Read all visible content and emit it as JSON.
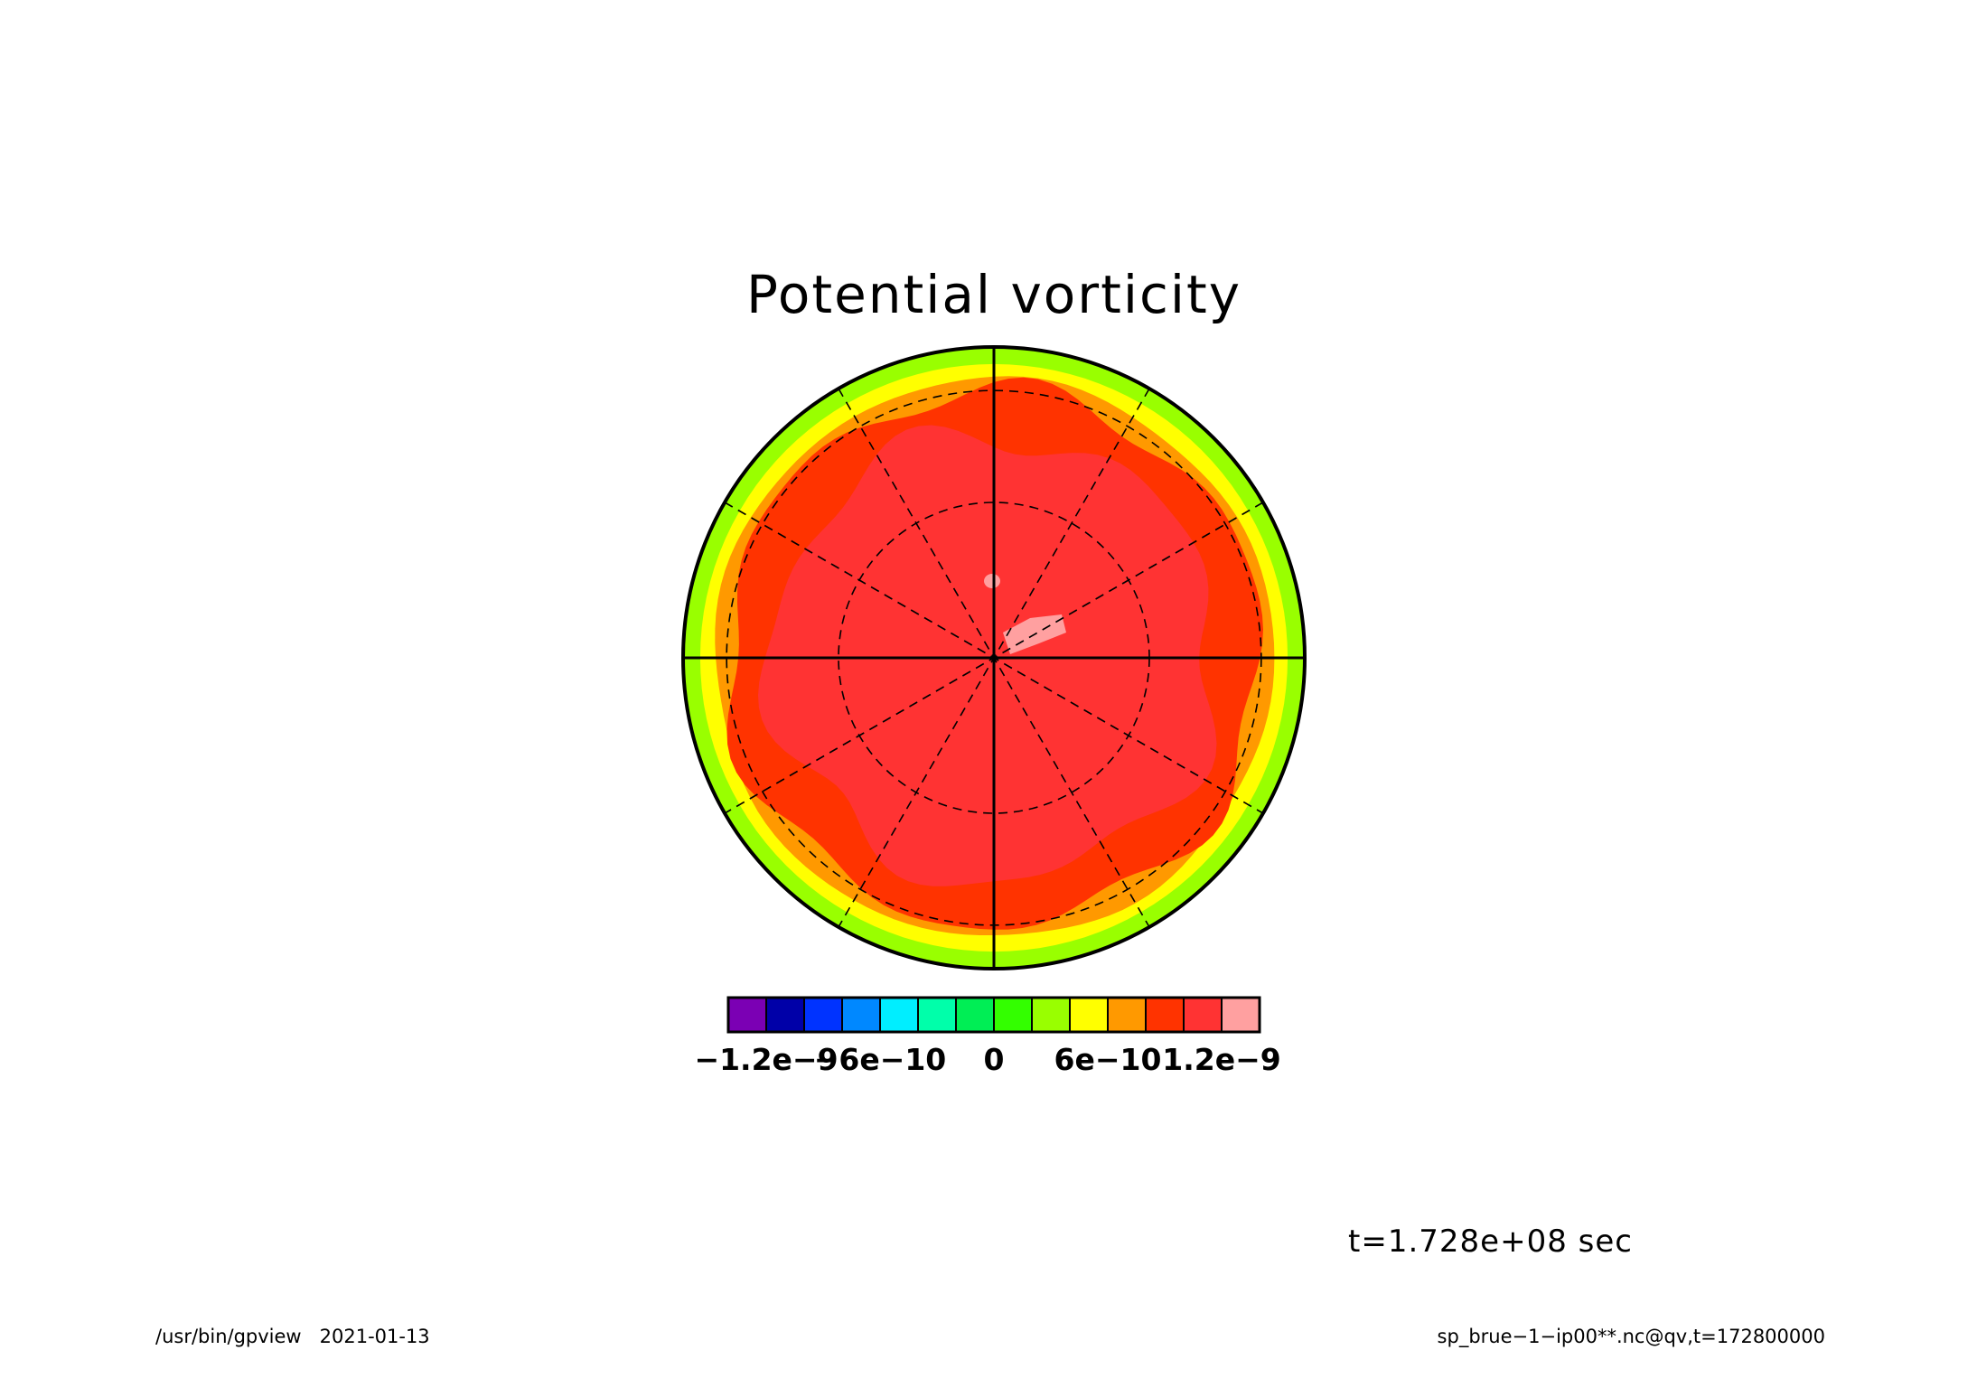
{
  "chart_data": {
    "type": "polar-contour",
    "title": "Potential vorticity",
    "projection": "polar stereographic (hemisphere)",
    "field_levels": [
      {
        "level": "max",
        "from": 1.2e-09,
        "color": "#FFA0A0"
      },
      {
        "level": "inner",
        "from": 1e-09,
        "color": "#FF3333"
      },
      {
        "level": "mid",
        "from": 8e-10,
        "color": "#FF3300"
      },
      {
        "level": "outer",
        "from": 6e-10,
        "color": "#FF9900"
      },
      {
        "level": "rim1",
        "from": 4e-10,
        "color": "#FFFF00"
      },
      {
        "level": "rim2",
        "from": 2e-10,
        "color": "#99FF00"
      }
    ],
    "colorbar": {
      "colors": [
        "#7B00B4",
        "#0000A8",
        "#0033FF",
        "#0088FF",
        "#00EEFF",
        "#00FFAA",
        "#00EE55",
        "#33FF00",
        "#99FF00",
        "#FFFF00",
        "#FF9900",
        "#FF3300",
        "#FF3333",
        "#FFA0A0"
      ],
      "tick_values": [
        -1.2e-09,
        -6e-10,
        0,
        6e-10,
        1.2e-09
      ],
      "tick_labels": [
        "−1.2e−9",
        "−6e−10",
        "0",
        "6e−10",
        "1.2e−9"
      ]
    },
    "grid": {
      "meridian_step_deg": 30,
      "latitude_circles": 2,
      "dashed": true
    }
  },
  "time_label": "t=1.728e+08 sec",
  "footer": {
    "left": "/usr/bin/gpview   2021-01-13",
    "right": "sp_brue−1−ip00**.nc@qv,t=172800000"
  }
}
